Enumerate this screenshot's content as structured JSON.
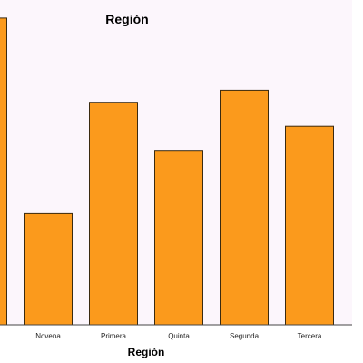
{
  "chart_data": {
    "type": "bar",
    "title": "Región",
    "xlabel": "Región",
    "ylabel": "",
    "categories": [
      "",
      "Novena",
      "Primera",
      "Quinta",
      "Segunda",
      "Tercera"
    ],
    "values": [
      10.2,
      3.7,
      7.4,
      5.8,
      7.8,
      6.6
    ],
    "ylim": [
      0,
      10.8
    ],
    "grid": false,
    "bar_color": "#fb9a1c",
    "background_color": "#fcf6fc"
  }
}
